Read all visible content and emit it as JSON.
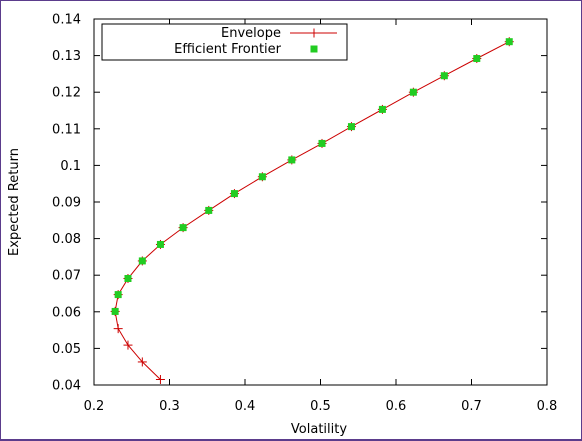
{
  "chart_data": {
    "type": "line",
    "xlabel": "Volatility",
    "ylabel": "Expected Return",
    "xlim": [
      0.2,
      0.8
    ],
    "ylim": [
      0.04,
      0.14
    ],
    "xticks": [
      "0.2",
      "0.3",
      "0.4",
      "0.5",
      "0.6",
      "0.7",
      "0.8"
    ],
    "yticks": [
      "0.04",
      "0.05",
      "0.06",
      "0.07",
      "0.08",
      "0.09",
      "0.1",
      "0.11",
      "0.12",
      "0.13",
      "0.14"
    ],
    "grid": false,
    "legend_position": "top-left",
    "series": [
      {
        "name": "Envelope",
        "style": "line-with-plus",
        "color": "#cc0000",
        "x": [
          0.288,
          0.264,
          0.245,
          0.232,
          0.228,
          0.232,
          0.245,
          0.264,
          0.288,
          0.318,
          0.352,
          0.386,
          0.423,
          0.462,
          0.502,
          0.541,
          0.582,
          0.623,
          0.664,
          0.707,
          0.75
        ],
        "y": [
          0.0415,
          0.0463,
          0.0509,
          0.0554,
          0.0601,
          0.0647,
          0.0691,
          0.0739,
          0.0784,
          0.083,
          0.0877,
          0.0923,
          0.0969,
          0.1015,
          0.106,
          0.1106,
          0.1153,
          0.12,
          0.1245,
          0.1292,
          0.1338
        ]
      },
      {
        "name": "Efficient Frontier",
        "style": "square-points",
        "color": "#22cc22",
        "x": [
          0.228,
          0.232,
          0.245,
          0.264,
          0.288,
          0.318,
          0.352,
          0.386,
          0.423,
          0.462,
          0.502,
          0.541,
          0.582,
          0.623,
          0.664,
          0.707,
          0.75
        ],
        "y": [
          0.0601,
          0.0647,
          0.0691,
          0.0739,
          0.0784,
          0.083,
          0.0877,
          0.0923,
          0.0969,
          0.1015,
          0.106,
          0.1106,
          0.1153,
          0.12,
          0.1245,
          0.1292,
          0.1338
        ]
      }
    ]
  }
}
